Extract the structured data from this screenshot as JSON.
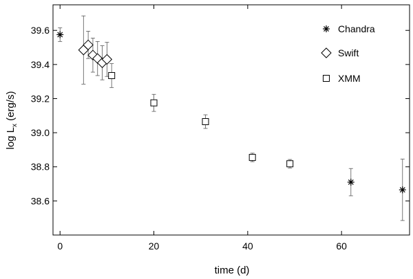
{
  "chart_data": {
    "type": "scatter",
    "xlabel": "time (d)",
    "ylabel": "log L_x (erg/s)",
    "ylabel_main": "log L",
    "ylabel_sub": "x",
    "ylabel_tail": " (erg/s)",
    "xlim": [
      -1.5,
      74.5
    ],
    "ylim": [
      38.4,
      39.75
    ],
    "xticks": [
      0,
      20,
      40,
      60
    ],
    "yticks": [
      38.6,
      38.8,
      39.0,
      39.2,
      39.4,
      39.6
    ],
    "ytick_labels": [
      "38.6",
      "38.8",
      "39.0",
      "39.2",
      "39.4",
      "39.6"
    ],
    "legend_position": "top-right",
    "series": [
      {
        "name": "Chandra",
        "marker": "asterisk",
        "points": [
          {
            "x": 0,
            "y": 39.575,
            "yerr": [
              0.04,
              0.04
            ]
          },
          {
            "x": 62,
            "y": 38.71,
            "yerr": [
              0.08,
              0.08
            ]
          },
          {
            "x": 73,
            "y": 38.665,
            "yerr": [
              0.18,
              0.18
            ]
          }
        ]
      },
      {
        "name": "Swift",
        "marker": "diamond",
        "points": [
          {
            "x": 5,
            "y": 39.485,
            "yerr": [
              0.2,
              0.2
            ]
          },
          {
            "x": 6,
            "y": 39.515,
            "yerr": [
              0.08,
              0.08
            ]
          },
          {
            "x": 7,
            "y": 39.455,
            "yerr": [
              0.1,
              0.1
            ]
          },
          {
            "x": 8,
            "y": 39.435,
            "yerr": [
              0.1,
              0.1
            ]
          },
          {
            "x": 9,
            "y": 39.41,
            "yerr": [
              0.1,
              0.1
            ]
          },
          {
            "x": 10,
            "y": 39.43,
            "yerr": [
              0.1,
              0.1
            ]
          }
        ]
      },
      {
        "name": "XMM",
        "marker": "square",
        "points": [
          {
            "x": 11,
            "y": 39.335,
            "yerr": [
              0.07,
              0.07
            ]
          },
          {
            "x": 20,
            "y": 39.175,
            "yerr": [
              0.05,
              0.05
            ]
          },
          {
            "x": 31,
            "y": 39.065,
            "yerr": [
              0.04,
              0.04
            ]
          },
          {
            "x": 41,
            "y": 38.855,
            "yerr": [
              0.025,
              0.025
            ]
          },
          {
            "x": 49,
            "y": 38.818,
            "yerr": [
              0.025,
              0.025
            ]
          }
        ]
      }
    ]
  }
}
